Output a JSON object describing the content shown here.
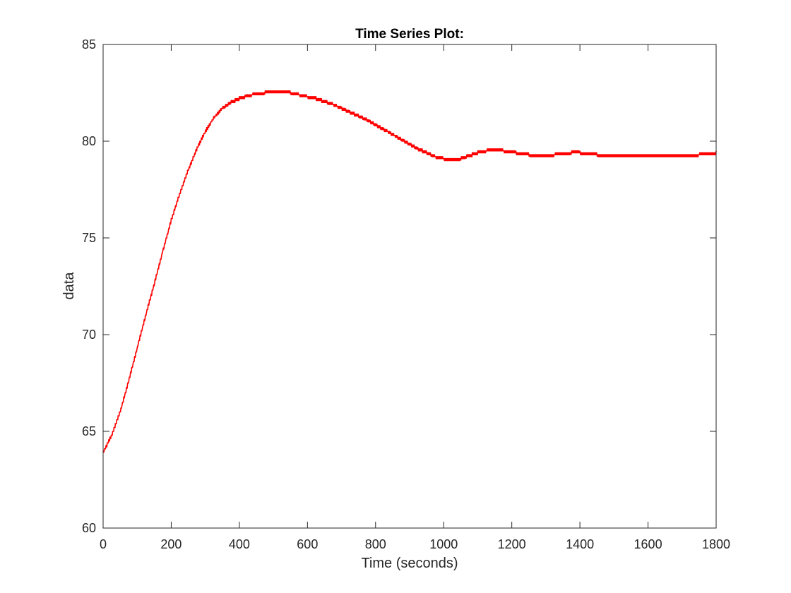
{
  "chart_data": {
    "type": "line",
    "title": "Time Series Plot:",
    "xlabel": "Time (seconds)",
    "ylabel": "data",
    "xlim": [
      0,
      1800
    ],
    "ylim": [
      60,
      85
    ],
    "xticks": [
      0,
      200,
      400,
      600,
      800,
      1000,
      1200,
      1400,
      1600,
      1800
    ],
    "yticks": [
      60,
      65,
      70,
      75,
      80,
      85
    ],
    "grid": false,
    "legend": "none",
    "series": [
      {
        "color": "#ff0000",
        "x": [
          0,
          25,
          50,
          75,
          100,
          125,
          150,
          175,
          200,
          225,
          250,
          275,
          300,
          325,
          350,
          375,
          400,
          425,
          450,
          475,
          500,
          525,
          550,
          575,
          600,
          625,
          650,
          675,
          700,
          725,
          750,
          775,
          800,
          825,
          850,
          875,
          900,
          925,
          950,
          975,
          1000,
          1025,
          1050,
          1075,
          1100,
          1125,
          1150,
          1175,
          1200,
          1225,
          1250,
          1275,
          1300,
          1325,
          1350,
          1375,
          1400,
          1425,
          1450,
          1475,
          1500,
          1550,
          1600,
          1650,
          1700,
          1750,
          1800
        ],
        "y": [
          63.9,
          64.8,
          66.0,
          67.6,
          69.3,
          71.0,
          72.6,
          74.3,
          75.9,
          77.3,
          78.5,
          79.6,
          80.5,
          81.2,
          81.7,
          82.0,
          82.2,
          82.35,
          82.45,
          82.5,
          82.55,
          82.55,
          82.5,
          82.4,
          82.3,
          82.2,
          82.05,
          81.9,
          81.7,
          81.5,
          81.3,
          81.1,
          80.85,
          80.6,
          80.35,
          80.1,
          79.85,
          79.6,
          79.4,
          79.2,
          79.1,
          79.05,
          79.1,
          79.25,
          79.4,
          79.5,
          79.55,
          79.5,
          79.45,
          79.35,
          79.3,
          79.25,
          79.25,
          79.3,
          79.35,
          79.4,
          79.4,
          79.35,
          79.3,
          79.25,
          79.25,
          79.25,
          79.25,
          79.25,
          79.25,
          79.3,
          79.4
        ]
      }
    ]
  }
}
